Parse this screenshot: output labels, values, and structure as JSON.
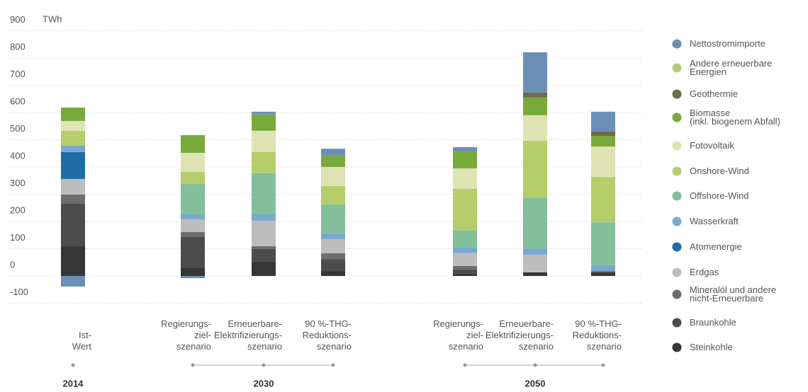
{
  "chart_data": {
    "type": "stacked_bar",
    "ylabel": "TWh",
    "ylim": [
      -100,
      900
    ],
    "yticks": [
      -100,
      0,
      100,
      200,
      300,
      400,
      500,
      600,
      700,
      800,
      900
    ],
    "grid": true,
    "categories": [
      "Ist-\nWert",
      "Regierungs-\nziel-\nszenario",
      "Erneuerbare-\nElektrifizierungs-\nszenario",
      "90 %-THG-\nReduktions-\nszenario",
      "Regierungs-\nziel-\nszenario",
      "Erneuerbare-\nElektrifizierungs-\nszenario",
      "90 %-THG-\nReduktions-\nszenario"
    ],
    "groups": [
      "2014",
      "2030",
      "2050"
    ],
    "series": [
      {
        "name": "Nettostromimporte",
        "color": "#6c8fb7",
        "values": [
          -39,
          -8,
          10,
          23,
          16,
          148,
          73
        ]
      },
      {
        "name": "Andere erneuerbare\nEnergien",
        "color": "#b3c977",
        "values": [
          0,
          0,
          0,
          0,
          0,
          0,
          0
        ]
      },
      {
        "name": "Geothermie",
        "color": "#6e6b47",
        "values": [
          0,
          0,
          0,
          0,
          0,
          18,
          16
        ]
      },
      {
        "name": "Biomasse\n(inkl. biogenem Abfall)",
        "color": "#78a93b",
        "values": [
          49,
          65,
          60,
          44,
          62,
          65,
          39
        ]
      },
      {
        "name": "Fotovoltaik",
        "color": "#dfe3b3",
        "values": [
          36,
          70,
          78,
          70,
          75,
          94,
          112
        ]
      },
      {
        "name": "Onshore-Wind",
        "color": "#b5cd6a",
        "values": [
          55,
          44,
          78,
          68,
          153,
          208,
          166
        ]
      },
      {
        "name": "Offshore-Wind",
        "color": "#82bf9a",
        "values": [
          0,
          112,
          151,
          106,
          62,
          187,
          158
        ]
      },
      {
        "name": "Wasserkraft",
        "color": "#7ba8d0",
        "values": [
          23,
          18,
          23,
          21,
          21,
          23,
          21
        ]
      },
      {
        "name": "Atomenergie",
        "color": "#1f6ca6",
        "values": [
          99,
          0,
          0,
          0,
          0,
          0,
          0
        ]
      },
      {
        "name": "Erdgas",
        "color": "#bdbdbd",
        "values": [
          57,
          47,
          94,
          52,
          47,
          65,
          0
        ]
      },
      {
        "name": "Mineralöl und andere\nnicht-Erneuerbare",
        "color": "#6d6d6d",
        "values": [
          34,
          18,
          10,
          21,
          13,
          0,
          5
        ]
      },
      {
        "name": "Braunkohle",
        "color": "#4c4c4c",
        "values": [
          156,
          112,
          47,
          44,
          16,
          0,
          0
        ]
      },
      {
        "name": "Steinkohle",
        "color": "#363636",
        "values": [
          109,
          31,
          52,
          18,
          8,
          13,
          13
        ]
      }
    ]
  }
}
